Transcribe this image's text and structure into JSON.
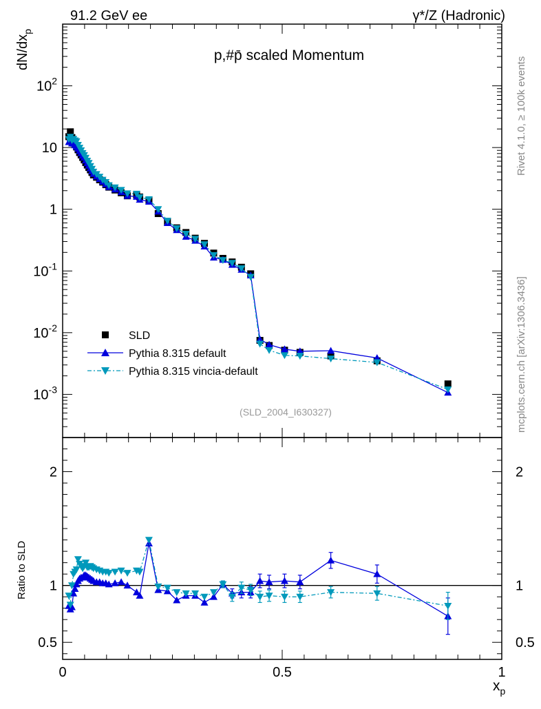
{
  "header": {
    "left_label": "91.2 GeV ee",
    "right_label": "γ*/Z (Hadronic)"
  },
  "side": {
    "rivet_label": "Rivet 4.1.0, ≥ 100k events",
    "mcplots_label": "mcplots.cern.ch [arXiv:1306.3436]"
  },
  "chart_data": [
    {
      "type": "scatter",
      "title": "p,#p̄ scaled Momentum",
      "ylabel": "dN/dx_p",
      "ylabel_main": "dN/dx",
      "ylabel_sub": "p",
      "xlabel": "x_p",
      "xlabel_main": "x",
      "xlabel_sub": "p",
      "xlim": [
        0,
        1
      ],
      "ylim": [
        0.0002,
        1000
      ],
      "yscale": "log",
      "xticks": [
        "0",
        "0.5",
        "1"
      ],
      "yticks": [
        "10^-3",
        "10^-2",
        "10^-1",
        "1",
        "10",
        "10^2"
      ],
      "analysis_id": "(SLD_2004_I630327)",
      "legend": [
        "SLD",
        "Pythia 8.315 default",
        "Pythia 8.315 vincia-default"
      ],
      "legend_position": "lower-left",
      "x": [
        0.0141,
        0.0176,
        0.0211,
        0.0246,
        0.0281,
        0.0316,
        0.0351,
        0.0386,
        0.0421,
        0.0456,
        0.0491,
        0.0526,
        0.0561,
        0.0597,
        0.0632,
        0.0667,
        0.0702,
        0.0772,
        0.0842,
        0.0912,
        0.0983,
        0.1053,
        0.1193,
        0.1334,
        0.1474,
        0.1685,
        0.1755,
        0.1966,
        0.2176,
        0.2387,
        0.2598,
        0.2808,
        0.3019,
        0.3229,
        0.344,
        0.365,
        0.3861,
        0.4072,
        0.4282,
        0.4493,
        0.4703,
        0.5054,
        0.5405,
        0.6107,
        0.716,
        0.8774
      ],
      "series": [
        {
          "name": "SLD",
          "marker": "square",
          "color": "#000000",
          "values": [
            15.0,
            18.0,
            14.5,
            12.5,
            11.2,
            10.2,
            9.2,
            8.3,
            7.6,
            6.9,
            6.3,
            5.7,
            5.2,
            4.75,
            4.35,
            3.95,
            3.6,
            3.3,
            3.0,
            2.75,
            2.5,
            2.28,
            2.05,
            1.85,
            1.65,
            1.7,
            1.58,
            1.4,
            0.85,
            0.63,
            0.5,
            0.42,
            0.34,
            0.28,
            0.195,
            0.16,
            0.14,
            0.115,
            0.09,
            0.0075,
            0.0062,
            0.0052,
            0.0048,
            0.0042,
            0.0035,
            0.00148
          ]
        },
        {
          "name": "Pythia 8.315 default",
          "marker": "triangle-up",
          "color": "#0000dd",
          "values": [
            12.3,
            14.2,
            11.7,
            11.6,
            10.9,
            10.3,
            9.6,
            8.8,
            8.1,
            7.4,
            6.9,
            6.2,
            5.6,
            5.1,
            4.6,
            4.15,
            3.75,
            3.4,
            3.1,
            2.8,
            2.55,
            2.3,
            2.1,
            1.9,
            1.65,
            1.6,
            1.43,
            1.33,
            0.92,
            0.6,
            0.46,
            0.36,
            0.31,
            0.25,
            0.165,
            0.152,
            0.126,
            0.105,
            0.085,
            0.0078,
            0.0064,
            0.0054,
            0.005,
            0.0051,
            0.0039,
            0.00107
          ]
        },
        {
          "name": "Pythia 8.315 vincia-default",
          "marker": "triangle-down",
          "color": "#0099bb",
          "values": [
            13.7,
            14.9,
            13.1,
            13.8,
            13.0,
            12.6,
            11.0,
            9.9,
            9.0,
            8.1,
            7.5,
            6.8,
            6.1,
            5.6,
            5.0,
            4.5,
            4.05,
            3.7,
            3.35,
            3.0,
            2.75,
            2.45,
            2.25,
            2.05,
            1.8,
            1.78,
            1.56,
            1.45,
            1.0,
            0.65,
            0.49,
            0.4,
            0.33,
            0.27,
            0.18,
            0.15,
            0.135,
            0.11,
            0.08,
            0.0066,
            0.0052,
            0.0043,
            0.0042,
            0.0038,
            0.0033,
            0.0012
          ]
        }
      ]
    },
    {
      "type": "scatter",
      "ylabel": "Ratio to SLD",
      "xlim": [
        0,
        1
      ],
      "ylim": [
        0.35,
        2.3
      ],
      "yticks": [
        "0.5",
        "1",
        "2"
      ],
      "x": [
        0.0141,
        0.0176,
        0.0211,
        0.0246,
        0.0281,
        0.0316,
        0.0351,
        0.0386,
        0.0421,
        0.0456,
        0.0491,
        0.0526,
        0.0561,
        0.0597,
        0.0632,
        0.0667,
        0.0702,
        0.0772,
        0.0842,
        0.0912,
        0.0983,
        0.1053,
        0.1193,
        0.1334,
        0.1474,
        0.1685,
        0.1755,
        0.1966,
        0.2176,
        0.2387,
        0.2598,
        0.2808,
        0.3019,
        0.3229,
        0.344,
        0.365,
        0.3861,
        0.4072,
        0.4282,
        0.4493,
        0.4703,
        0.5054,
        0.5405,
        0.6107,
        0.716,
        0.8774
      ],
      "series": [
        {
          "name": "Pythia 8.315 default",
          "marker": "triangle-up",
          "color": "#0000dd",
          "values": [
            0.82,
            0.79,
            0.81,
            0.93,
            0.97,
            1.01,
            1.04,
            1.06,
            1.07,
            1.07,
            1.09,
            1.09,
            1.08,
            1.07,
            1.06,
            1.05,
            1.04,
            1.03,
            1.03,
            1.02,
            1.02,
            1.01,
            1.02,
            1.03,
            1.0,
            0.94,
            0.91,
            1.37,
            0.96,
            0.95,
            0.87,
            0.91,
            0.91,
            0.85,
            0.9,
            1.01,
            0.93,
            0.94,
            0.94,
            1.04,
            1.03,
            1.04,
            1.03,
            1.22,
            1.1,
            0.73
          ],
          "errors": [
            0.02,
            0.02,
            0.02,
            0.02,
            0.02,
            0.02,
            0.02,
            0.02,
            0.02,
            0.02,
            0.02,
            0.02,
            0.02,
            0.02,
            0.02,
            0.02,
            0.02,
            0.02,
            0.02,
            0.02,
            0.02,
            0.02,
            0.02,
            0.02,
            0.02,
            0.02,
            0.02,
            0.02,
            0.02,
            0.02,
            0.02,
            0.02,
            0.02,
            0.02,
            0.02,
            0.03,
            0.04,
            0.05,
            0.05,
            0.06,
            0.06,
            0.06,
            0.06,
            0.07,
            0.08,
            0.16
          ]
        },
        {
          "name": "Pythia 8.315 vincia-default",
          "marker": "triangle-down",
          "color": "#0099bb",
          "values": [
            0.91,
            0.83,
            1.0,
            1.1,
            1.12,
            1.14,
            1.23,
            1.19,
            1.17,
            1.15,
            1.17,
            1.2,
            1.16,
            1.16,
            1.17,
            1.16,
            1.15,
            1.14,
            1.13,
            1.12,
            1.12,
            1.11,
            1.12,
            1.13,
            1.11,
            1.13,
            1.12,
            1.4,
            0.99,
            0.98,
            0.94,
            0.93,
            0.93,
            0.9,
            0.94,
            1.01,
            0.9,
            0.98,
            0.96,
            0.9,
            0.91,
            0.9,
            0.9,
            0.94,
            0.93,
            0.82
          ],
          "errors": [
            0.02,
            0.02,
            0.02,
            0.02,
            0.02,
            0.02,
            0.02,
            0.02,
            0.02,
            0.02,
            0.02,
            0.02,
            0.02,
            0.02,
            0.02,
            0.02,
            0.02,
            0.02,
            0.02,
            0.02,
            0.02,
            0.02,
            0.02,
            0.02,
            0.02,
            0.02,
            0.02,
            0.02,
            0.02,
            0.02,
            0.02,
            0.02,
            0.02,
            0.02,
            0.02,
            0.03,
            0.04,
            0.05,
            0.05,
            0.05,
            0.05,
            0.05,
            0.05,
            0.05,
            0.06,
            0.12
          ]
        }
      ],
      "reference_line": 1
    }
  ]
}
